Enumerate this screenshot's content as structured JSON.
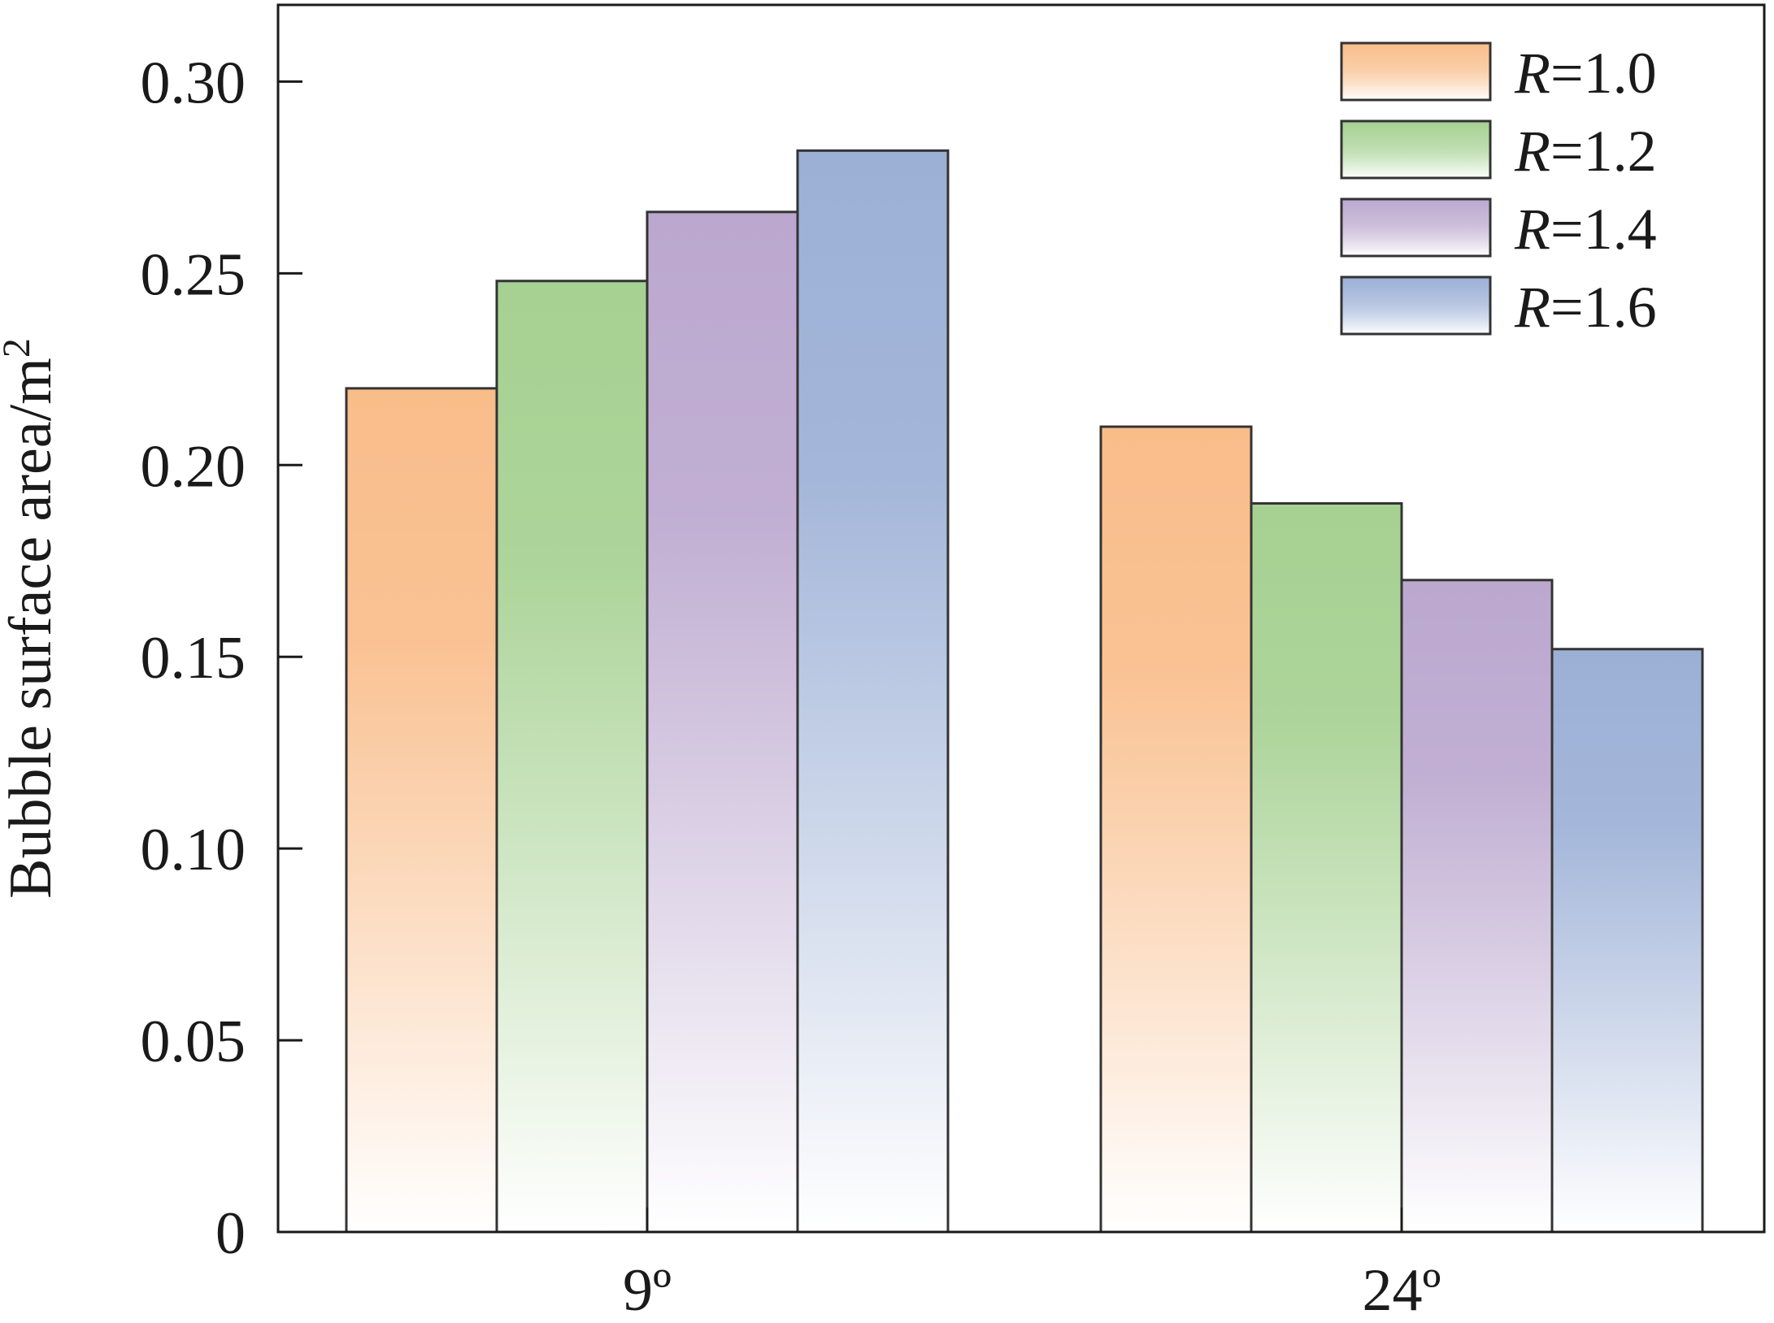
{
  "chart_data": {
    "type": "bar",
    "title": "",
    "ylabel": "Bubble surface area/m",
    "ylabel_superscript": "2",
    "xlabel": "",
    "categories": [
      "9º",
      "24º"
    ],
    "ylim": [
      0,
      0.32
    ],
    "yticks": [
      0,
      0.05,
      0.1,
      0.15,
      0.2,
      0.25,
      0.3
    ],
    "ytick_labels": [
      "0",
      "0.05",
      "0.10",
      "0.15",
      "0.20",
      "0.25",
      "0.30"
    ],
    "legend_position": "top-right",
    "grid": false,
    "series": [
      {
        "name_prefix": "R",
        "name_suffix": "=1.0",
        "color": "#f9bd8a",
        "values": [
          0.22,
          0.21
        ]
      },
      {
        "name_prefix": "R",
        "name_suffix": "=1.2",
        "color": "#a6d192",
        "values": [
          0.248,
          0.19
        ]
      },
      {
        "name_prefix": "R",
        "name_suffix": "=1.4",
        "color": "#bca8cf",
        "values": [
          0.266,
          0.17
        ]
      },
      {
        "name_prefix": "R",
        "name_suffix": "=1.6",
        "color": "#9cb0d6",
        "values": [
          0.282,
          0.152
        ]
      }
    ]
  }
}
